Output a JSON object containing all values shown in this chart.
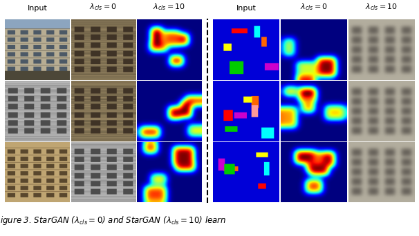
{
  "figure_width": 6.06,
  "figure_height": 3.42,
  "dpi": 100,
  "background_color": "#ffffff",
  "col_headers_left": [
    "Input",
    "$\\lambda_{cls} = 0$",
    "$\\lambda_{cls} = 10$"
  ],
  "col_headers_right": [
    "Input",
    "$\\lambda_{cls} = 0$",
    "$\\lambda_{cls} = 10$"
  ],
  "caption": "igure 3. StarGAN ($\\lambda_{cls} = 0$) and StarGAN ($\\lambda_{cls} = 10$) learn",
  "header_fontsize": 8,
  "caption_fontsize": 8.5
}
